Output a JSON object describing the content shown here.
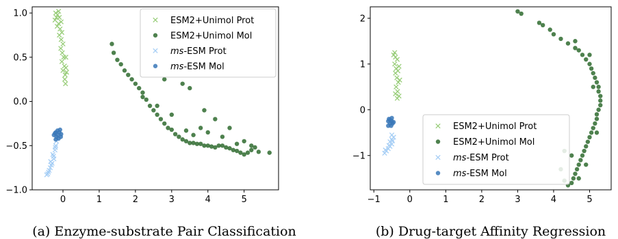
{
  "colors": {
    "esm2_prot": "#98cd79",
    "esm2_mol": "#2f6b2f",
    "ms_prot": "#a6cef5",
    "ms_mol": "#3a78b8"
  },
  "chart_data": [
    {
      "type": "scatter",
      "caption": "(a) Enzyme-substrate Pair Classification",
      "xlim": [
        -0.85,
        5.95
      ],
      "ylim": [
        -1.0,
        1.07
      ],
      "xticks": [
        "0",
        "1",
        "2",
        "3",
        "4",
        "5"
      ],
      "xtick_values": [
        0,
        1,
        2,
        3,
        4,
        5
      ],
      "yticks": [
        "−1.0",
        "−0.5",
        "0.0",
        "0.5",
        "1.0"
      ],
      "ytick_values": [
        -1.0,
        -0.5,
        0.0,
        0.5,
        1.0
      ],
      "legend_position": "upper-right",
      "series": [
        {
          "name": "ESM2+Unimol Prot",
          "marker": "x",
          "color_key": "esm2_prot",
          "points": [
            [
              -0.2,
              1.0
            ],
            [
              -0.15,
              0.98
            ],
            [
              -0.1,
              0.95
            ],
            [
              -0.05,
              0.9
            ],
            [
              -0.12,
              0.88
            ],
            [
              -0.08,
              0.82
            ],
            [
              -0.03,
              0.78
            ],
            [
              -0.1,
              0.75
            ],
            [
              -0.05,
              0.7
            ],
            [
              0.0,
              0.65
            ],
            [
              -0.06,
              0.6
            ],
            [
              -0.02,
              0.55
            ],
            [
              0.02,
              0.5
            ],
            [
              -0.03,
              0.45
            ],
            [
              0.04,
              0.4
            ],
            [
              0.0,
              0.35
            ],
            [
              0.06,
              0.3
            ],
            [
              0.08,
              0.38
            ],
            [
              0.1,
              0.33
            ],
            [
              0.05,
              0.25
            ],
            [
              0.07,
              0.2
            ],
            [
              -0.18,
              0.95
            ],
            [
              -0.12,
              1.02
            ],
            [
              -0.22,
              0.92
            ],
            [
              -0.16,
              0.85
            ],
            [
              0.08,
              0.5
            ]
          ]
        },
        {
          "name": "ESM2+Unimol Mol",
          "marker": "o",
          "color_key": "esm2_mol",
          "points": [
            [
              1.35,
              0.65
            ],
            [
              1.4,
              0.55
            ],
            [
              1.5,
              0.47
            ],
            [
              1.6,
              0.42
            ],
            [
              1.7,
              0.35
            ],
            [
              1.8,
              0.3
            ],
            [
              1.9,
              0.25
            ],
            [
              2.0,
              0.2
            ],
            [
              2.1,
              0.15
            ],
            [
              2.2,
              0.1
            ],
            [
              2.3,
              0.02
            ],
            [
              2.4,
              -0.05
            ],
            [
              2.5,
              -0.1
            ],
            [
              2.6,
              -0.15
            ],
            [
              2.7,
              -0.2
            ],
            [
              2.8,
              -0.25
            ],
            [
              2.9,
              -0.3
            ],
            [
              3.0,
              -0.32
            ],
            [
              3.1,
              -0.37
            ],
            [
              3.2,
              -0.4
            ],
            [
              3.3,
              -0.43
            ],
            [
              3.4,
              -0.45
            ],
            [
              3.5,
              -0.47
            ],
            [
              3.6,
              -0.47
            ],
            [
              3.7,
              -0.48
            ],
            [
              3.8,
              -0.48
            ],
            [
              3.9,
              -0.5
            ],
            [
              4.0,
              -0.5
            ],
            [
              4.1,
              -0.51
            ],
            [
              4.2,
              -0.52
            ],
            [
              4.3,
              -0.5
            ],
            [
              4.4,
              -0.5
            ],
            [
              4.5,
              -0.52
            ],
            [
              4.6,
              -0.53
            ],
            [
              4.7,
              -0.55
            ],
            [
              4.8,
              -0.56
            ],
            [
              4.9,
              -0.58
            ],
            [
              5.0,
              -0.6
            ],
            [
              5.1,
              -0.58
            ],
            [
              5.2,
              -0.55
            ],
            [
              5.3,
              -0.52
            ],
            [
              5.4,
              -0.57
            ],
            [
              5.7,
              -0.58
            ],
            [
              3.3,
              0.2
            ],
            [
              3.5,
              0.15
            ],
            [
              2.8,
              0.25
            ],
            [
              2.2,
              0.05
            ],
            [
              3.9,
              -0.1
            ],
            [
              4.2,
              -0.2
            ],
            [
              4.6,
              -0.3
            ],
            [
              3.0,
              -0.15
            ],
            [
              2.6,
              -0.05
            ],
            [
              4.4,
              -0.4
            ],
            [
              5.0,
              -0.45
            ],
            [
              3.8,
              -0.3
            ],
            [
              3.6,
              -0.38
            ],
            [
              3.4,
              -0.33
            ],
            [
              4.8,
              -0.48
            ],
            [
              5.2,
              -0.5
            ],
            [
              4.0,
              -0.35
            ]
          ]
        },
        {
          "name": "ms-ESM Prot",
          "marker": "x",
          "color_key": "ms_prot",
          "points": [
            [
              -0.45,
              -0.83
            ],
            [
              -0.4,
              -0.8
            ],
            [
              -0.35,
              -0.75
            ],
            [
              -0.3,
              -0.7
            ],
            [
              -0.25,
              -0.65
            ],
            [
              -0.28,
              -0.6
            ],
            [
              -0.22,
              -0.55
            ],
            [
              -0.2,
              -0.5
            ],
            [
              -0.18,
              -0.45
            ],
            [
              -0.38,
              -0.78
            ],
            [
              -0.32,
              -0.72
            ],
            [
              -0.26,
              -0.62
            ],
            [
              -0.21,
              -0.52
            ],
            [
              -0.42,
              -0.82
            ],
            [
              -0.34,
              -0.68
            ]
          ]
        },
        {
          "name": "ms-ESM Mol",
          "marker": "o",
          "color_key": "ms_mol",
          "points": [
            [
              -0.25,
              -0.38
            ],
            [
              -0.2,
              -0.35
            ],
            [
              -0.15,
              -0.33
            ],
            [
              -0.1,
              -0.35
            ],
            [
              -0.05,
              -0.37
            ],
            [
              -0.18,
              -0.4
            ],
            [
              -0.12,
              -0.42
            ],
            [
              -0.08,
              -0.32
            ],
            [
              -0.22,
              -0.36
            ],
            [
              -0.14,
              -0.38
            ],
            [
              -0.2,
              -0.43
            ],
            [
              -0.06,
              -0.4
            ]
          ]
        }
      ]
    },
    {
      "type": "scatter",
      "caption": "(b) Drug-target Affinity Regression",
      "xlim": [
        -1.1,
        5.6
      ],
      "ylim": [
        -1.75,
        2.25
      ],
      "xticks": [
        "−1",
        "0",
        "1",
        "2",
        "3",
        "4",
        "5"
      ],
      "xtick_values": [
        -1,
        0,
        1,
        2,
        3,
        4,
        5
      ],
      "yticks": [
        "−1",
        "0",
        "1",
        "2"
      ],
      "ytick_values": [
        -1,
        0,
        1,
        2
      ],
      "legend_position": "lower-right",
      "series": [
        {
          "name": "ESM2+Unimol Prot",
          "marker": "x",
          "color_key": "esm2_prot",
          "points": [
            [
              -0.45,
              1.2
            ],
            [
              -0.4,
              1.15
            ],
            [
              -0.35,
              1.1
            ],
            [
              -0.42,
              1.0
            ],
            [
              -0.38,
              0.9
            ],
            [
              -0.33,
              0.85
            ],
            [
              -0.4,
              0.8
            ],
            [
              -0.36,
              0.7
            ],
            [
              -0.32,
              0.6
            ],
            [
              -0.38,
              0.5
            ],
            [
              -0.34,
              0.4
            ],
            [
              -0.3,
              0.3
            ],
            [
              -0.35,
              0.25
            ],
            [
              -0.42,
              1.25
            ],
            [
              -0.3,
              0.95
            ],
            [
              -0.28,
              0.65
            ],
            [
              -0.4,
              0.35
            ]
          ]
        },
        {
          "name": "ESM2+Unimol Mol",
          "marker": "o",
          "color_key": "esm2_mol",
          "points": [
            [
              3.0,
              2.15
            ],
            [
              3.1,
              2.1
            ],
            [
              3.6,
              1.9
            ],
            [
              3.7,
              1.85
            ],
            [
              3.9,
              1.75
            ],
            [
              4.0,
              1.65
            ],
            [
              4.2,
              1.55
            ],
            [
              4.4,
              1.45
            ],
            [
              4.6,
              1.35
            ],
            [
              4.7,
              1.3
            ],
            [
              4.8,
              1.2
            ],
            [
              4.9,
              1.1
            ],
            [
              5.0,
              1.0
            ],
            [
              5.05,
              0.9
            ],
            [
              5.1,
              0.8
            ],
            [
              5.15,
              0.7
            ],
            [
              5.2,
              0.6
            ],
            [
              5.25,
              0.5
            ],
            [
              5.25,
              0.4
            ],
            [
              5.3,
              0.3
            ],
            [
              5.3,
              0.2
            ],
            [
              5.3,
              0.1
            ],
            [
              5.25,
              0.0
            ],
            [
              5.2,
              -0.1
            ],
            [
              5.2,
              -0.2
            ],
            [
              5.15,
              -0.3
            ],
            [
              5.1,
              -0.4
            ],
            [
              5.05,
              -0.5
            ],
            [
              5.0,
              -0.6
            ],
            [
              4.95,
              -0.7
            ],
            [
              4.9,
              -0.8
            ],
            [
              4.85,
              -0.9
            ],
            [
              4.8,
              -1.0
            ],
            [
              4.75,
              -1.1
            ],
            [
              4.7,
              -1.2
            ],
            [
              4.65,
              -1.3
            ],
            [
              4.6,
              -1.4
            ],
            [
              4.55,
              -1.5
            ],
            [
              4.5,
              -1.6
            ],
            [
              4.4,
              -1.65
            ],
            [
              4.3,
              -1.55
            ],
            [
              4.2,
              -1.3
            ],
            [
              4.6,
              1.5
            ],
            [
              5.0,
              1.2
            ],
            [
              5.1,
              0.5
            ],
            [
              5.2,
              -0.5
            ],
            [
              4.9,
              -1.2
            ],
            [
              4.3,
              -0.9
            ],
            [
              4.5,
              -1.0
            ],
            [
              4.7,
              -1.5
            ]
          ]
        },
        {
          "name": "ms-ESM Prot",
          "marker": "x",
          "color_key": "ms_prot",
          "points": [
            [
              -0.7,
              -0.95
            ],
            [
              -0.65,
              -0.9
            ],
            [
              -0.6,
              -0.85
            ],
            [
              -0.55,
              -0.8
            ],
            [
              -0.5,
              -0.75
            ],
            [
              -0.55,
              -0.7
            ],
            [
              -0.5,
              -0.65
            ],
            [
              -0.45,
              -0.6
            ],
            [
              -0.5,
              -0.55
            ],
            [
              -0.68,
              -0.88
            ],
            [
              -0.58,
              -0.78
            ],
            [
              -0.48,
              -0.68
            ]
          ]
        },
        {
          "name": "ms-ESM Mol",
          "marker": "o",
          "color_key": "ms_mol",
          "points": [
            [
              -0.6,
              -0.25
            ],
            [
              -0.55,
              -0.22
            ],
            [
              -0.5,
              -0.25
            ],
            [
              -0.55,
              -0.3
            ],
            [
              -0.48,
              -0.3
            ],
            [
              -0.6,
              -0.35
            ],
            [
              -0.52,
              -0.35
            ],
            [
              -0.45,
              -0.27
            ],
            [
              -0.58,
              -0.2
            ],
            [
              -0.5,
              -0.18
            ]
          ]
        }
      ]
    }
  ]
}
